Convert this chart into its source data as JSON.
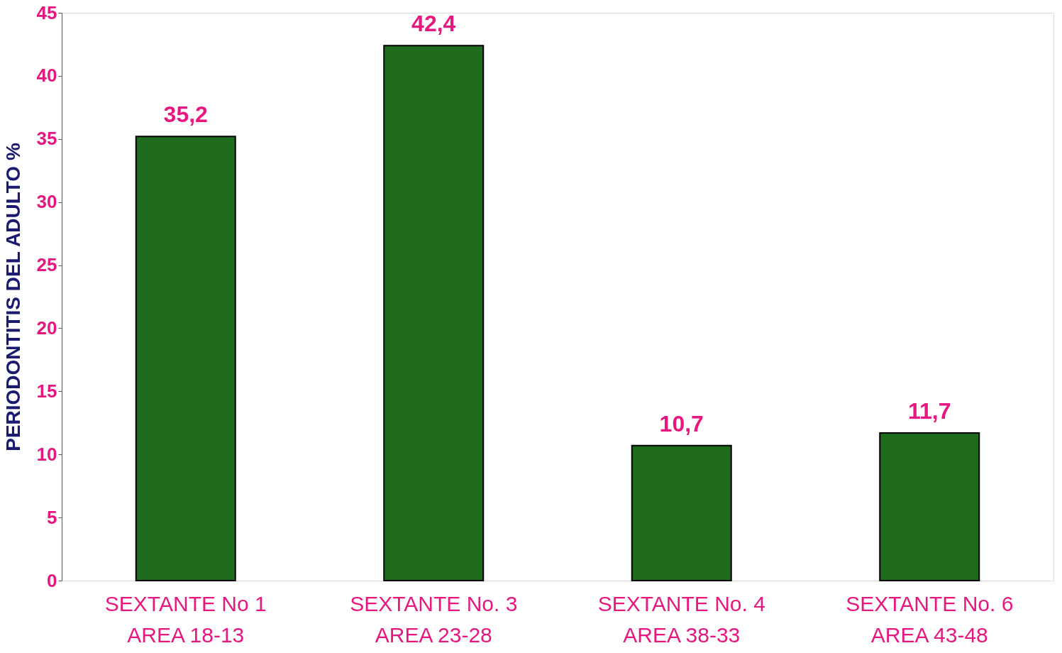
{
  "chart_data": {
    "type": "bar",
    "ylabel": "PERIODONTITIS DEL ADULTO %",
    "categories": [
      "SEXTANTE No 1\nAREA 18-13",
      "SEXTANTE No. 3\nAREA 23-28",
      "SEXTANTE No.  4\nAREA 38-33",
      "SEXTANTE No. 6\nAREA 43-48"
    ],
    "values": [
      35.2,
      42.4,
      10.7,
      11.7
    ],
    "value_labels": [
      "35,2",
      "42,4",
      "10,7",
      "11,7"
    ],
    "color": "#1e6b1e",
    "ylim": [
      0,
      45
    ],
    "yticks": [
      0,
      5,
      10,
      15,
      20,
      25,
      30,
      35,
      40,
      45
    ],
    "grid": false
  }
}
